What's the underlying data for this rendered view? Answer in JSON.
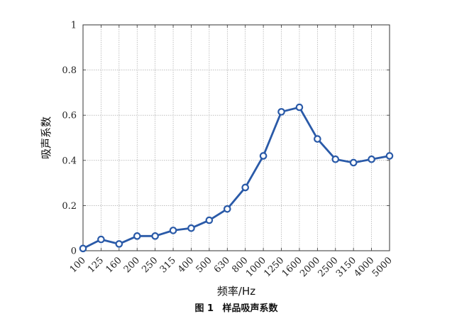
{
  "chart_data": {
    "type": "line",
    "title": "",
    "caption": {
      "number": "图 1",
      "text": "样品吸声系数"
    },
    "xlabel": "频率/Hz",
    "ylabel": "吸声系数",
    "categories": [
      "100",
      "125",
      "160",
      "200",
      "250",
      "315",
      "400",
      "500",
      "630",
      "800",
      "1000",
      "1250",
      "1600",
      "2000",
      "2500",
      "3150",
      "4000",
      "5000"
    ],
    "series": [
      {
        "values": [
          0.01,
          0.05,
          0.03,
          0.065,
          0.065,
          0.09,
          0.1,
          0.135,
          0.185,
          0.28,
          0.42,
          0.615,
          0.635,
          0.495,
          0.405,
          0.39,
          0.405,
          0.42
        ],
        "color": "#2a5aa8",
        "marker": "circle"
      }
    ],
    "ylim": [
      0,
      1
    ],
    "yticks": [
      0,
      0.2,
      0.4,
      0.6,
      0.8,
      1
    ],
    "ytick_labels": [
      "0",
      "0.2",
      "0.4",
      "0.6",
      "0.8",
      "1"
    ],
    "grid": true,
    "legend": "none"
  }
}
